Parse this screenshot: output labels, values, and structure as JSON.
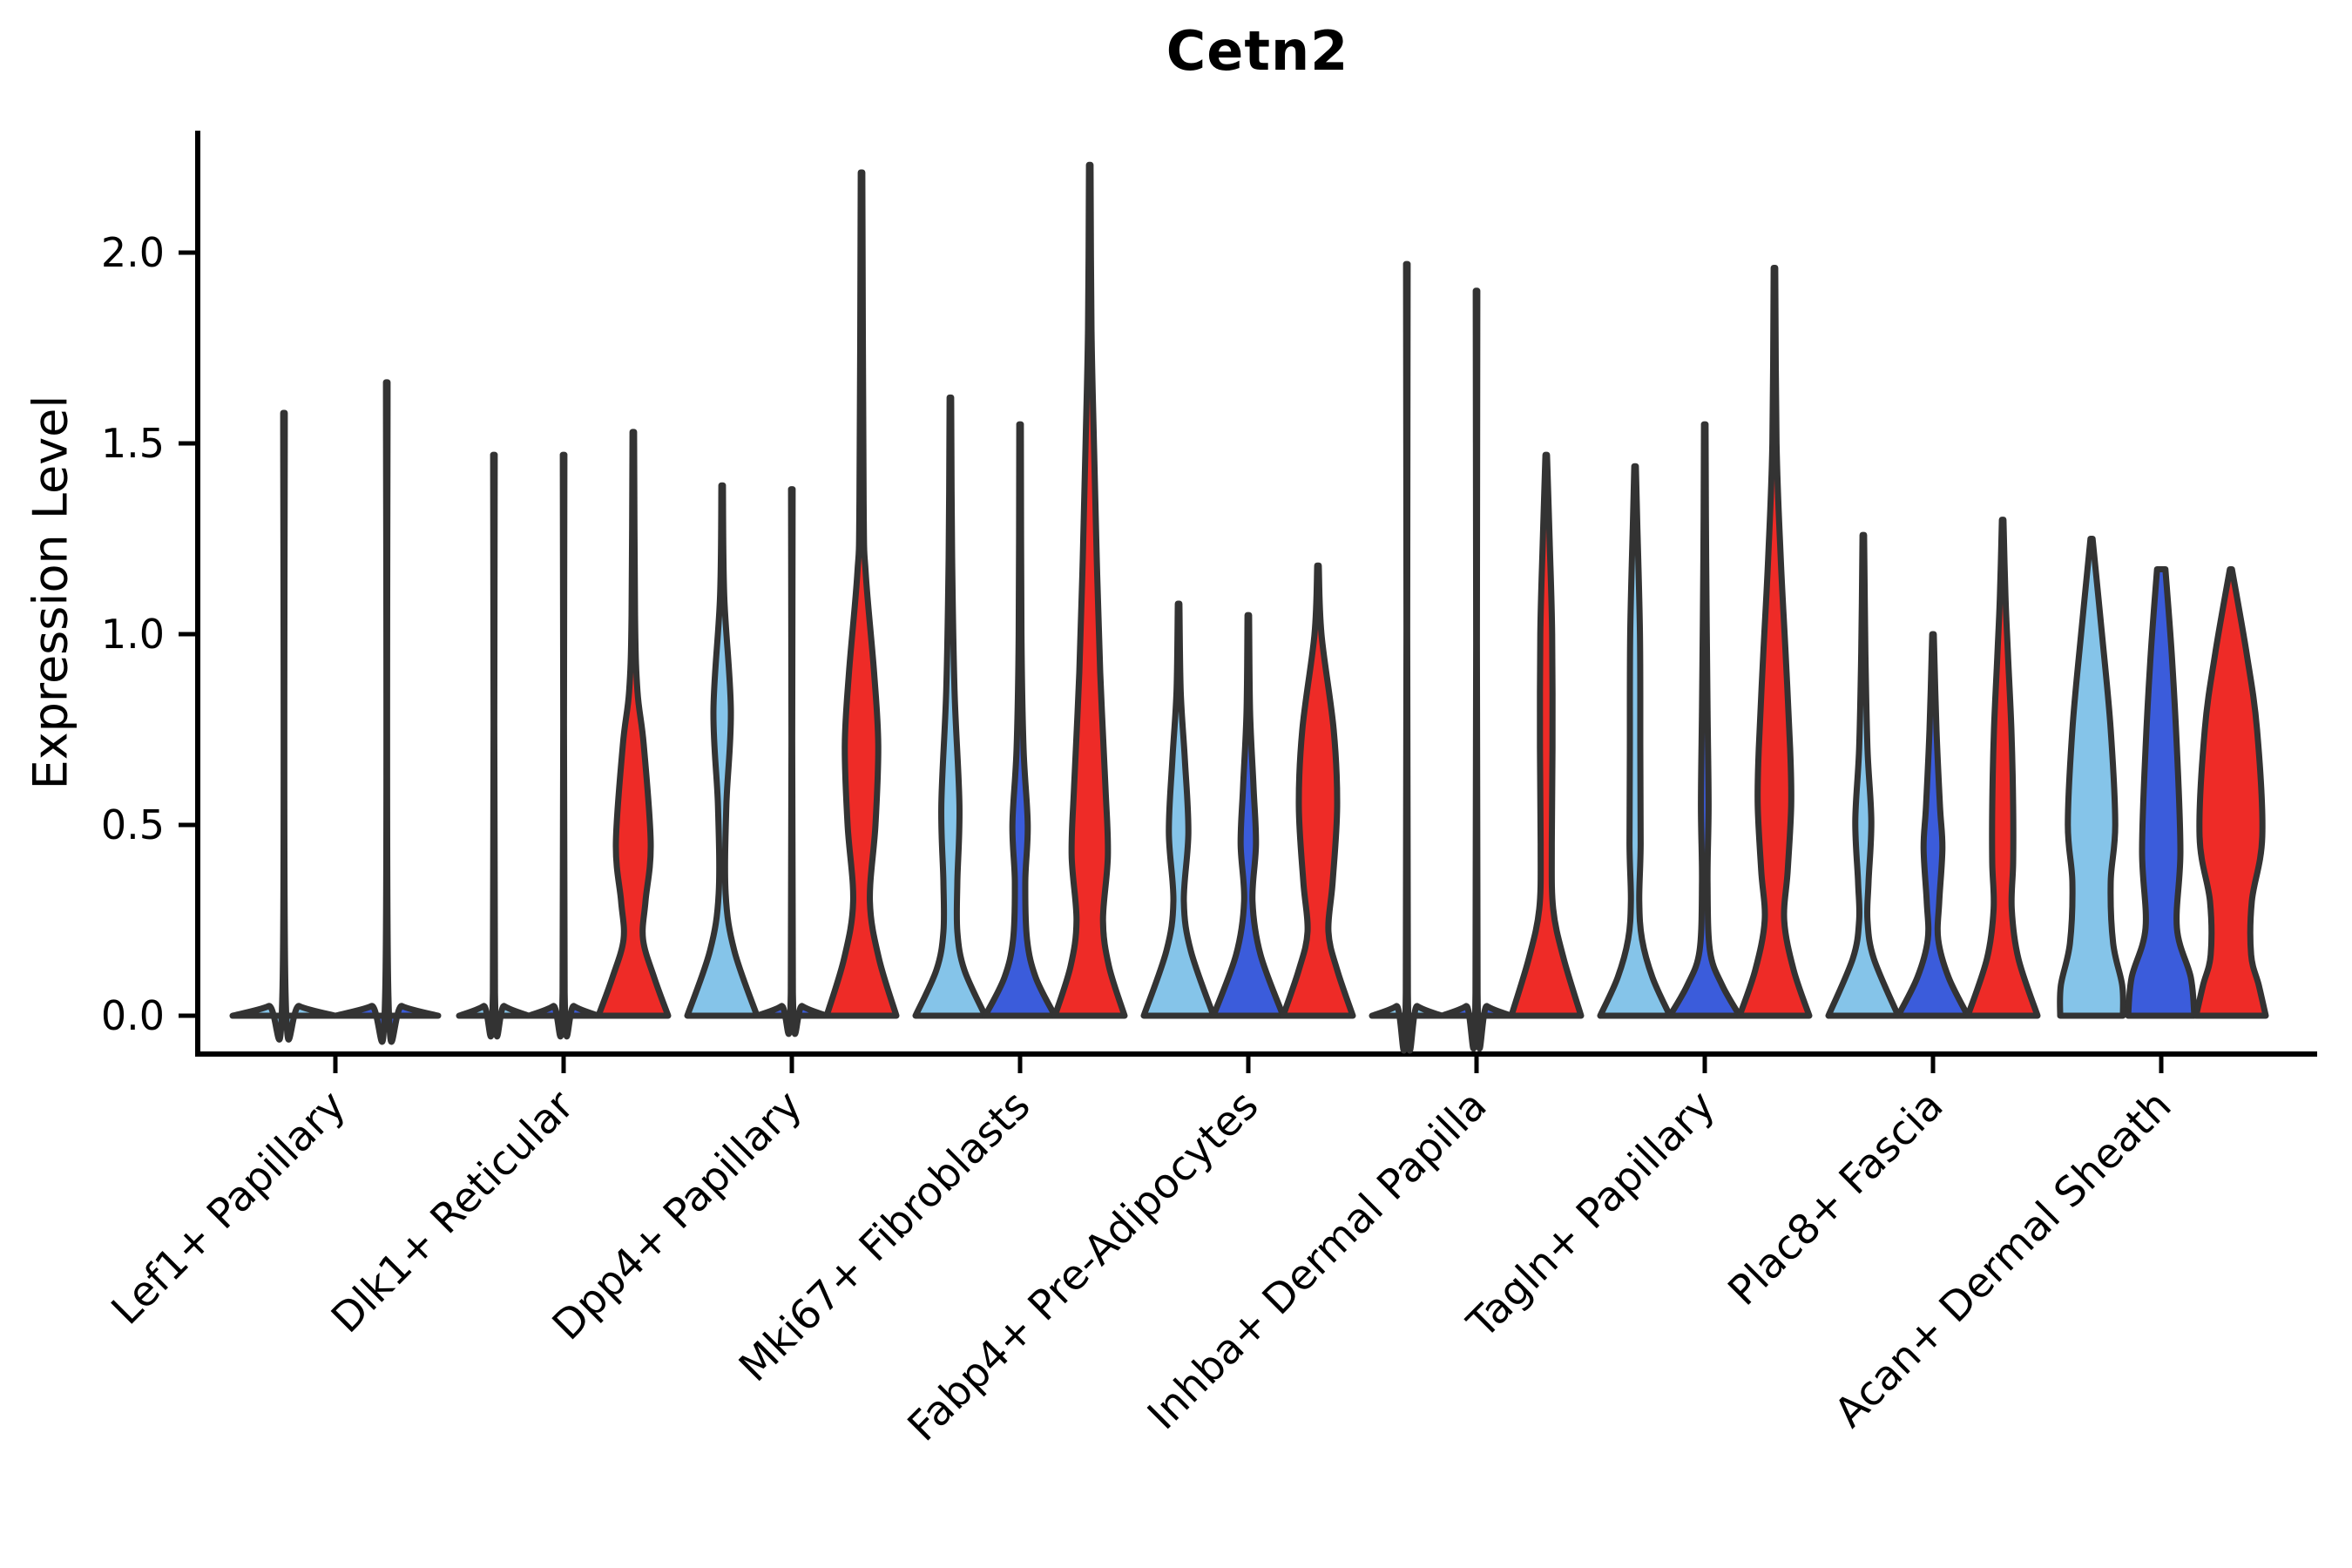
{
  "chart_data": {
    "type": "violin",
    "title": "Cetn2",
    "ylabel": "Expression Level",
    "xlabel": "",
    "ytick_labels": [
      "0.0",
      "0.5",
      "1.0",
      "1.5",
      "2.0"
    ],
    "ytick_values": [
      0.0,
      0.5,
      1.0,
      1.5,
      2.0
    ],
    "ylim": [
      -0.06,
      2.35
    ],
    "grid": false,
    "legend": "none",
    "outline_color": "#333333",
    "axis_color": "#000000",
    "conditions": [
      {
        "key": "split1",
        "label": "light-blue split",
        "color": "#85C4E9"
      },
      {
        "key": "split2",
        "label": "dark-blue split",
        "color": "#3B5CDB"
      },
      {
        "key": "split3",
        "label": "red split",
        "color": "#EE2B27"
      }
    ],
    "categories": [
      "Lef1+ Papillary",
      "Dlk1+ Reticular",
      "Dpp4+ Papillary",
      "Mki67+ Fibroblasts",
      "Fabp4+ Pre-Adipocytes",
      "Inhba+ Dermal Papilla",
      "Tagln+ Papillary",
      "Plac8+ Fascia",
      "Acan+ Dermal Sheath"
    ],
    "groups": [
      {
        "category": "Lef1+ Papillary",
        "violins": [
          {
            "condition": "split1",
            "max": 1.58,
            "wide": true,
            "profile": [
              [
                1.58,
                0.015
              ],
              [
                0.06,
                0.03
              ],
              [
                0.025,
                0.3
              ],
              [
                0,
                1
              ]
            ]
          },
          {
            "condition": "split2",
            "max": 1.66,
            "wide": true,
            "profile": [
              [
                1.66,
                0.015
              ],
              [
                0.06,
                0.03
              ],
              [
                0.025,
                0.3
              ],
              [
                0,
                1
              ]
            ]
          }
        ]
      },
      {
        "category": "Dlk1+ Reticular",
        "violins": [
          {
            "condition": "split1",
            "max": 1.47,
            "profile": [
              [
                1.47,
                0.015
              ],
              [
                0.06,
                0.03
              ],
              [
                0.025,
                0.3
              ],
              [
                0,
                1
              ]
            ]
          },
          {
            "condition": "split2",
            "max": 1.47,
            "profile": [
              [
                1.47,
                0.015
              ],
              [
                0.06,
                0.03
              ],
              [
                0.025,
                0.3
              ],
              [
                0,
                1
              ]
            ]
          },
          {
            "condition": "split3",
            "max": 1.53,
            "profile": [
              [
                1.53,
                0.015
              ],
              [
                1.05,
                0.05
              ],
              [
                0.85,
                0.12
              ],
              [
                0.71,
                0.3
              ],
              [
                0.45,
                0.5
              ],
              [
                0.3,
                0.35
              ],
              [
                0.2,
                0.28
              ],
              [
                0.1,
                0.6
              ],
              [
                0,
                1
              ]
            ]
          }
        ]
      },
      {
        "category": "Dpp4+ Papillary",
        "violins": [
          {
            "condition": "split1",
            "max": 1.39,
            "profile": [
              [
                1.39,
                0.015
              ],
              [
                1.1,
                0.06
              ],
              [
                0.8,
                0.25
              ],
              [
                0.55,
                0.12
              ],
              [
                0.32,
                0.1
              ],
              [
                0.17,
                0.35
              ],
              [
                0,
                1
              ]
            ]
          },
          {
            "condition": "split2",
            "max": 1.38,
            "profile": [
              [
                1.38,
                0.015
              ],
              [
                0.06,
                0.03
              ],
              [
                0.025,
                0.3
              ],
              [
                0,
                1
              ]
            ]
          },
          {
            "condition": "split3",
            "max": 2.21,
            "profile": [
              [
                2.21,
                0.012
              ],
              [
                1.35,
                0.06
              ],
              [
                1.16,
                0.12
              ],
              [
                0.9,
                0.36
              ],
              [
                0.71,
                0.48
              ],
              [
                0.5,
                0.4
              ],
              [
                0.3,
                0.24
              ],
              [
                0.15,
                0.5
              ],
              [
                0,
                1
              ]
            ]
          }
        ]
      },
      {
        "category": "Mki67+ Fibroblasts",
        "violins": [
          {
            "condition": "split1",
            "max": 1.62,
            "profile": [
              [
                1.62,
                0.012
              ],
              [
                1.2,
                0.05
              ],
              [
                0.85,
                0.12
              ],
              [
                0.55,
                0.26
              ],
              [
                0.35,
                0.2
              ],
              [
                0.22,
                0.2
              ],
              [
                0.12,
                0.4
              ],
              [
                0,
                1
              ]
            ]
          },
          {
            "condition": "split2",
            "max": 1.55,
            "profile": [
              [
                1.55,
                0.012
              ],
              [
                1.0,
                0.04
              ],
              [
                0.7,
                0.1
              ],
              [
                0.5,
                0.22
              ],
              [
                0.35,
                0.15
              ],
              [
                0.2,
                0.2
              ],
              [
                0.1,
                0.45
              ],
              [
                0,
                1
              ]
            ]
          },
          {
            "condition": "split3",
            "max": 2.23,
            "profile": [
              [
                2.23,
                0.012
              ],
              [
                1.8,
                0.05
              ],
              [
                1.5,
                0.12
              ],
              [
                1.2,
                0.2
              ],
              [
                0.9,
                0.3
              ],
              [
                0.6,
                0.45
              ],
              [
                0.42,
                0.52
              ],
              [
                0.25,
                0.38
              ],
              [
                0.13,
                0.55
              ],
              [
                0,
                1
              ]
            ]
          }
        ]
      },
      {
        "category": "Fabp4+ Pre-Adipocytes",
        "violins": [
          {
            "condition": "split1",
            "max": 1.08,
            "profile": [
              [
                1.08,
                0.015
              ],
              [
                0.85,
                0.06
              ],
              [
                0.67,
                0.18
              ],
              [
                0.48,
                0.28
              ],
              [
                0.3,
                0.15
              ],
              [
                0.17,
                0.35
              ],
              [
                0,
                1
              ]
            ]
          },
          {
            "condition": "split2",
            "max": 1.05,
            "profile": [
              [
                1.05,
                0.015
              ],
              [
                0.8,
                0.05
              ],
              [
                0.6,
                0.15
              ],
              [
                0.45,
                0.22
              ],
              [
                0.3,
                0.12
              ],
              [
                0.16,
                0.35
              ],
              [
                0,
                1
              ]
            ]
          },
          {
            "condition": "split3",
            "max": 1.18,
            "profile": [
              [
                1.18,
                0.02
              ],
              [
                1.0,
                0.1
              ],
              [
                0.75,
                0.45
              ],
              [
                0.55,
                0.55
              ],
              [
                0.35,
                0.42
              ],
              [
                0.22,
                0.3
              ],
              [
                0.12,
                0.55
              ],
              [
                0,
                1
              ]
            ]
          }
        ]
      },
      {
        "category": "Inhba+ Dermal Papilla",
        "violins": [
          {
            "condition": "split1",
            "max": 1.97,
            "profile": [
              [
                1.97,
                0.015
              ],
              [
                0.06,
                0.03
              ],
              [
                0.025,
                0.3
              ],
              [
                0,
                1
              ]
            ]
          },
          {
            "condition": "split2",
            "max": 1.9,
            "profile": [
              [
                1.9,
                0.015
              ],
              [
                0.06,
                0.03
              ],
              [
                0.025,
                0.3
              ],
              [
                0,
                1
              ]
            ]
          },
          {
            "condition": "split3",
            "max": 1.47,
            "profile": [
              [
                1.47,
                0.015
              ],
              [
                1.24,
                0.1
              ],
              [
                1.0,
                0.17
              ],
              [
                0.7,
                0.18
              ],
              [
                0.45,
                0.16
              ],
              [
                0.28,
                0.2
              ],
              [
                0.15,
                0.5
              ],
              [
                0,
                1
              ]
            ]
          }
        ]
      },
      {
        "category": "Tagln+ Papillary",
        "violins": [
          {
            "condition": "split1",
            "max": 1.44,
            "profile": [
              [
                1.44,
                0.012
              ],
              [
                1.3,
                0.06
              ],
              [
                1.0,
                0.14
              ],
              [
                0.7,
                0.15
              ],
              [
                0.45,
                0.16
              ],
              [
                0.3,
                0.12
              ],
              [
                0.2,
                0.2
              ],
              [
                0.1,
                0.5
              ],
              [
                0,
                1
              ]
            ]
          },
          {
            "condition": "split2",
            "max": 1.55,
            "profile": [
              [
                1.55,
                0.012
              ],
              [
                1.2,
                0.04
              ],
              [
                0.8,
                0.08
              ],
              [
                0.55,
                0.11
              ],
              [
                0.35,
                0.08
              ],
              [
                0.17,
                0.15
              ],
              [
                0.08,
                0.5
              ],
              [
                0,
                1
              ]
            ]
          },
          {
            "condition": "split3",
            "max": 1.96,
            "profile": [
              [
                1.96,
                0.012
              ],
              [
                1.5,
                0.06
              ],
              [
                1.2,
                0.18
              ],
              [
                0.95,
                0.32
              ],
              [
                0.7,
                0.45
              ],
              [
                0.55,
                0.48
              ],
              [
                0.38,
                0.38
              ],
              [
                0.25,
                0.28
              ],
              [
                0.12,
                0.55
              ],
              [
                0,
                1
              ]
            ]
          }
        ]
      },
      {
        "category": "Plac8+ Fascia",
        "violins": [
          {
            "condition": "split1",
            "max": 1.26,
            "profile": [
              [
                1.26,
                0.015
              ],
              [
                0.95,
                0.06
              ],
              [
                0.7,
                0.12
              ],
              [
                0.51,
                0.23
              ],
              [
                0.35,
                0.15
              ],
              [
                0.25,
                0.12
              ],
              [
                0.15,
                0.3
              ],
              [
                0,
                1
              ]
            ]
          },
          {
            "condition": "split2",
            "max": 1.0,
            "profile": [
              [
                1.0,
                0.015
              ],
              [
                0.75,
                0.1
              ],
              [
                0.55,
                0.2
              ],
              [
                0.44,
                0.27
              ],
              [
                0.3,
                0.18
              ],
              [
                0.2,
                0.15
              ],
              [
                0.1,
                0.45
              ],
              [
                0,
                1
              ]
            ]
          },
          {
            "condition": "split3",
            "max": 1.3,
            "profile": [
              [
                1.3,
                0.015
              ],
              [
                1.1,
                0.08
              ],
              [
                0.95,
                0.15
              ],
              [
                0.75,
                0.25
              ],
              [
                0.55,
                0.3
              ],
              [
                0.4,
                0.3
              ],
              [
                0.28,
                0.26
              ],
              [
                0.15,
                0.45
              ],
              [
                0,
                1
              ]
            ]
          }
        ]
      },
      {
        "category": "Acan+ Dermal Sheath",
        "violins": [
          {
            "condition": "split1",
            "max": 1.25,
            "profile": [
              [
                1.25,
                0.03
              ],
              [
                1.0,
                0.3
              ],
              [
                0.75,
                0.55
              ],
              [
                0.5,
                0.68
              ],
              [
                0.35,
                0.55
              ],
              [
                0.19,
                0.62
              ],
              [
                0.08,
                0.88
              ],
              [
                0,
                0.9
              ]
            ]
          },
          {
            "condition": "split2",
            "max": 1.17,
            "profile": [
              [
                1.17,
                0.12
              ],
              [
                0.95,
                0.3
              ],
              [
                0.7,
                0.45
              ],
              [
                0.43,
                0.55
              ],
              [
                0.23,
                0.45
              ],
              [
                0.1,
                0.85
              ],
              [
                0,
                0.95
              ]
            ]
          },
          {
            "condition": "split3",
            "max": 1.17,
            "profile": [
              [
                1.17,
                0.03
              ],
              [
                0.95,
                0.45
              ],
              [
                0.75,
                0.75
              ],
              [
                0.47,
                0.9
              ],
              [
                0.3,
                0.6
              ],
              [
                0.16,
                0.58
              ],
              [
                0.08,
                0.8
              ],
              [
                0,
                1
              ]
            ]
          }
        ]
      }
    ]
  }
}
